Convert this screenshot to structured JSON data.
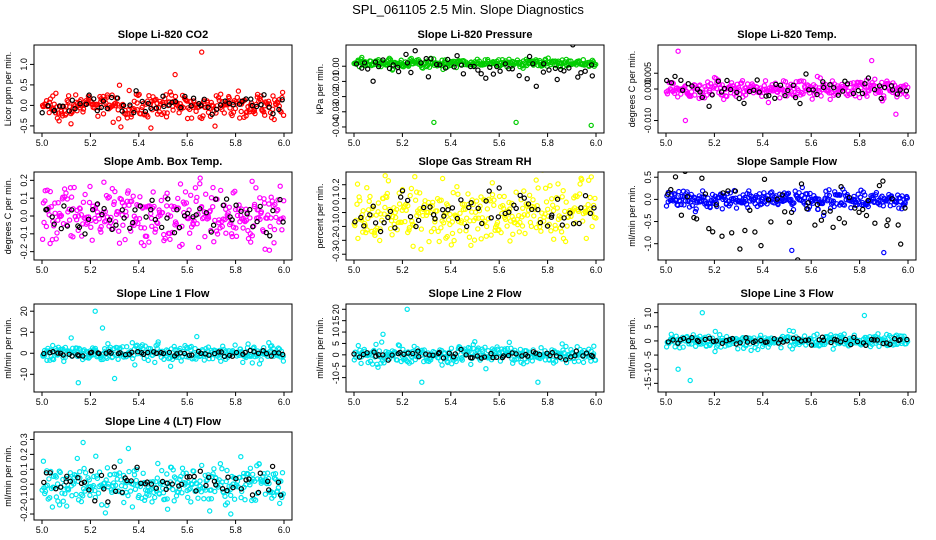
{
  "title": "SPL_061105  2.5 Min. Slope Diagnostics",
  "colors": {
    "co2": "#ff0000",
    "pressure": "#00cc00",
    "temp": "#ff00ff",
    "rh": "#ffff00",
    "sample": "#0000ff",
    "line": "#00e5ee",
    "overlay": "#000000"
  },
  "chart_data": [
    {
      "type": "scatter",
      "title": "Slope Li-820 CO2",
      "xlabel": "",
      "ylabel": "Licor ppm per min.",
      "xlim": [
        5.0,
        6.0
      ],
      "ylim": [
        -0.6,
        1.4
      ],
      "xticks": [
        "5.0",
        "5.2",
        "5.4",
        "5.6",
        "5.8",
        "6.0"
      ],
      "yticks": [
        {
          "v": -0.5,
          "l": "-0.5"
        },
        {
          "v": 0.0,
          "l": "0.0"
        },
        {
          "v": 0.5,
          "l": "0.5"
        },
        {
          "v": 1.0,
          "l": "1.0"
        }
      ],
      "color": "co2",
      "series": [
        {
          "name": "slope",
          "center": 0.0,
          "spread": 0.15,
          "n": 300
        },
        {
          "name": "overlay",
          "center": 0.0,
          "spread": 0.12,
          "n": 60
        }
      ],
      "outliers": [
        {
          "x": 5.66,
          "y": 1.3
        },
        {
          "x": 5.55,
          "y": 0.75
        },
        {
          "x": 5.45,
          "y": -0.55
        },
        {
          "x": 5.12,
          "y": -0.45
        }
      ]
    },
    {
      "type": "scatter",
      "title": "Slope Li-820 Pressure",
      "xlabel": "",
      "ylabel": "kPa per min.",
      "xlim": [
        5.0,
        6.0
      ],
      "ylim": [
        -0.042,
        0.012
      ],
      "xticks": [
        "5.0",
        "5.2",
        "5.4",
        "5.6",
        "5.8",
        "6.0"
      ],
      "yticks": [
        {
          "v": -0.04,
          "l": "-0.04"
        },
        {
          "v": -0.03,
          "l": "-0.03"
        },
        {
          "v": -0.02,
          "l": "-0.02"
        },
        {
          "v": -0.01,
          "l": "-0.01"
        },
        {
          "v": 0.0,
          "l": "0.00"
        }
      ],
      "color": "pressure",
      "series": [
        {
          "name": "slope",
          "center": 0.002,
          "spread": 0.0015,
          "n": 300
        },
        {
          "name": "overlay",
          "center": 0.0,
          "spread": 0.006,
          "n": 60
        }
      ],
      "outliers": [
        {
          "x": 5.33,
          "y": -0.037
        },
        {
          "x": 5.67,
          "y": -0.037
        },
        {
          "x": 5.98,
          "y": -0.039
        }
      ]
    },
    {
      "type": "scatter",
      "title": "Slope Li-820 Temp.",
      "xlabel": "",
      "ylabel": "degrees C per min.",
      "xlim": [
        5.0,
        6.0
      ],
      "ylim": [
        -0.013,
        0.013
      ],
      "xticks": [
        "5.0",
        "5.2",
        "5.4",
        "5.6",
        "5.8",
        "6.0"
      ],
      "yticks": [
        {
          "v": -0.01,
          "l": "-0.010"
        },
        {
          "v": 0.0,
          "l": "0.000"
        },
        {
          "v": 0.005,
          "l": "0.005"
        }
      ],
      "color": "temp",
      "series": [
        {
          "name": "slope",
          "center": 0.0,
          "spread": 0.0015,
          "n": 300
        },
        {
          "name": "overlay",
          "center": 0.0,
          "spread": 0.002,
          "n": 60
        }
      ],
      "outliers": [
        {
          "x": 5.05,
          "y": 0.012
        },
        {
          "x": 5.08,
          "y": -0.01
        },
        {
          "x": 5.85,
          "y": 0.009
        },
        {
          "x": 5.95,
          "y": -0.008
        }
      ]
    },
    {
      "type": "scatter",
      "title": "Slope Amb. Box Temp.",
      "xlabel": "",
      "ylabel": "degrees C per min.",
      "xlim": [
        5.0,
        6.0
      ],
      "ylim": [
        -0.23,
        0.23
      ],
      "xticks": [
        "5.0",
        "5.2",
        "5.4",
        "5.6",
        "5.8",
        "6.0"
      ],
      "yticks": [
        {
          "v": -0.2,
          "l": "-0.2"
        },
        {
          "v": -0.1,
          "l": "-0.1"
        },
        {
          "v": 0.0,
          "l": "0.0"
        },
        {
          "v": 0.1,
          "l": "0.1"
        },
        {
          "v": 0.2,
          "l": "0.2"
        }
      ],
      "color": "temp",
      "series": [
        {
          "name": "slope",
          "center": 0.0,
          "spread": 0.08,
          "n": 320
        },
        {
          "name": "overlay",
          "center": 0.0,
          "spread": 0.06,
          "n": 60
        }
      ],
      "outliers": []
    },
    {
      "type": "scatter",
      "title": "Slope Gas Stream RH",
      "xlabel": "",
      "ylabel": "percent per min.",
      "xlim": [
        5.0,
        6.0
      ],
      "ylim": [
        -0.32,
        0.27
      ],
      "xticks": [
        "5.0",
        "5.2",
        "5.4",
        "5.6",
        "5.8",
        "6.0"
      ],
      "yticks": [
        {
          "v": -0.3,
          "l": "-0.3"
        },
        {
          "v": -0.2,
          "l": "-0.2"
        },
        {
          "v": -0.1,
          "l": "-0.1"
        },
        {
          "v": 0.0,
          "l": "0.0"
        },
        {
          "v": 0.1,
          "l": "0.1"
        },
        {
          "v": 0.2,
          "l": "0.2"
        }
      ],
      "color": "rh",
      "series": [
        {
          "name": "slope",
          "center": 0.0,
          "spread": 0.11,
          "n": 320
        },
        {
          "name": "overlay",
          "center": 0.0,
          "spread": 0.09,
          "n": 60
        }
      ],
      "outliers": []
    },
    {
      "type": "scatter",
      "title": "Slope Sample Flow",
      "xlabel": "",
      "ylabel": "ml/min per min.",
      "xlim": [
        5.0,
        6.0
      ],
      "ylim": [
        -1.3,
        0.55
      ],
      "xticks": [
        "5.0",
        "5.2",
        "5.4",
        "5.6",
        "5.8",
        "6.0"
      ],
      "yticks": [
        {
          "v": -1.0,
          "l": "-1.0"
        },
        {
          "v": -0.5,
          "l": "-0.5"
        },
        {
          "v": 0.0,
          "l": "0.0"
        },
        {
          "v": 0.5,
          "l": "0.5"
        }
      ],
      "color": "sample",
      "series": [
        {
          "name": "slope",
          "center": 0.0,
          "spread": 0.1,
          "n": 320
        },
        {
          "name": "overlay",
          "center": -0.3,
          "spread": 0.5,
          "n": 60
        }
      ],
      "outliers": [
        {
          "x": 5.52,
          "y": -1.15
        },
        {
          "x": 5.9,
          "y": -1.2
        }
      ]
    },
    {
      "type": "scatter",
      "title": "Slope Line 1 Flow",
      "xlabel": "",
      "ylabel": "ml/min per min.",
      "xlim": [
        5.0,
        6.0
      ],
      "ylim": [
        -17,
        22
      ],
      "xticks": [
        "5.0",
        "5.2",
        "5.4",
        "5.6",
        "5.8",
        "6.0"
      ],
      "yticks": [
        {
          "v": -10,
          "l": "-10"
        },
        {
          "v": 0,
          "l": "0"
        },
        {
          "v": 10,
          "l": "10"
        },
        {
          "v": 20,
          "l": "20"
        }
      ],
      "color": "line",
      "series": [
        {
          "name": "slope",
          "center": 0.0,
          "spread": 2.0,
          "n": 300
        },
        {
          "name": "overlay",
          "center": 0.0,
          "spread": 0.8,
          "n": 60
        }
      ],
      "outliers": [
        {
          "x": 5.22,
          "y": 20
        },
        {
          "x": 5.15,
          "y": -14
        },
        {
          "x": 5.25,
          "y": 12
        },
        {
          "x": 5.3,
          "y": -12
        }
      ]
    },
    {
      "type": "scatter",
      "title": "Slope Line 2 Flow",
      "xlabel": "",
      "ylabel": "ml/min per min.",
      "xlim": [
        5.0,
        6.0
      ],
      "ylim": [
        -15,
        21
      ],
      "xticks": [
        "5.0",
        "5.2",
        "5.4",
        "5.6",
        "5.8",
        "6.0"
      ],
      "yticks": [
        {
          "v": -10,
          "l": "-10"
        },
        {
          "v": -5,
          "l": "-5"
        },
        {
          "v": 0,
          "l": "0"
        },
        {
          "v": 5,
          "l": "5"
        },
        {
          "v": 10,
          "l": "10"
        },
        {
          "v": 15,
          "l": "15"
        },
        {
          "v": 20,
          "l": "20"
        }
      ],
      "color": "line",
      "series": [
        {
          "name": "slope",
          "center": 0.0,
          "spread": 2.0,
          "n": 300
        },
        {
          "name": "overlay",
          "center": 0.0,
          "spread": 0.8,
          "n": 60
        }
      ],
      "outliers": [
        {
          "x": 5.22,
          "y": 20
        },
        {
          "x": 5.28,
          "y": -12
        },
        {
          "x": 5.76,
          "y": -12
        },
        {
          "x": 5.12,
          "y": 9
        }
      ]
    },
    {
      "type": "scatter",
      "title": "Slope Line 3 Flow",
      "xlabel": "",
      "ylabel": "ml/min per min.",
      "xlim": [
        5.0,
        6.0
      ],
      "ylim": [
        -17,
        12
      ],
      "xticks": [
        "5.0",
        "5.2",
        "5.4",
        "5.6",
        "5.8",
        "6.0"
      ],
      "yticks": [
        {
          "v": -15,
          "l": "-15"
        },
        {
          "v": -10,
          "l": "-10"
        },
        {
          "v": -5,
          "l": "-5"
        },
        {
          "v": 0,
          "l": "0"
        },
        {
          "v": 5,
          "l": "5"
        },
        {
          "v": 10,
          "l": "10"
        }
      ],
      "color": "line",
      "series": [
        {
          "name": "slope",
          "center": 0.0,
          "spread": 1.2,
          "n": 300
        },
        {
          "name": "overlay",
          "center": 0.0,
          "spread": 0.8,
          "n": 60
        }
      ],
      "outliers": [
        {
          "x": 5.1,
          "y": -14
        },
        {
          "x": 5.05,
          "y": -10
        },
        {
          "x": 5.15,
          "y": 10
        },
        {
          "x": 5.82,
          "y": 9
        }
      ]
    },
    {
      "type": "scatter",
      "title": "Slope Line 4 (LT) Flow",
      "xlabel": "",
      "ylabel": "ml/min per min.",
      "xlim": [
        5.0,
        6.0
      ],
      "ylim": [
        -0.22,
        0.33
      ],
      "xticks": [
        "5.0",
        "5.2",
        "5.4",
        "5.6",
        "5.8",
        "6.0"
      ],
      "yticks": [
        {
          "v": -0.2,
          "l": "-0.2"
        },
        {
          "v": -0.1,
          "l": "-0.1"
        },
        {
          "v": 0.0,
          "l": "0.0"
        },
        {
          "v": 0.1,
          "l": "0.1"
        },
        {
          "v": 0.2,
          "l": "0.2"
        },
        {
          "v": 0.3,
          "l": "0.3"
        }
      ],
      "color": "line",
      "series": [
        {
          "name": "slope",
          "center": 0.0,
          "spread": 0.07,
          "n": 320
        },
        {
          "name": "overlay",
          "center": 0.0,
          "spread": 0.05,
          "n": 60
        }
      ],
      "outliers": [
        {
          "x": 5.17,
          "y": 0.28
        },
        {
          "x": 5.78,
          "y": -0.2
        }
      ]
    }
  ]
}
